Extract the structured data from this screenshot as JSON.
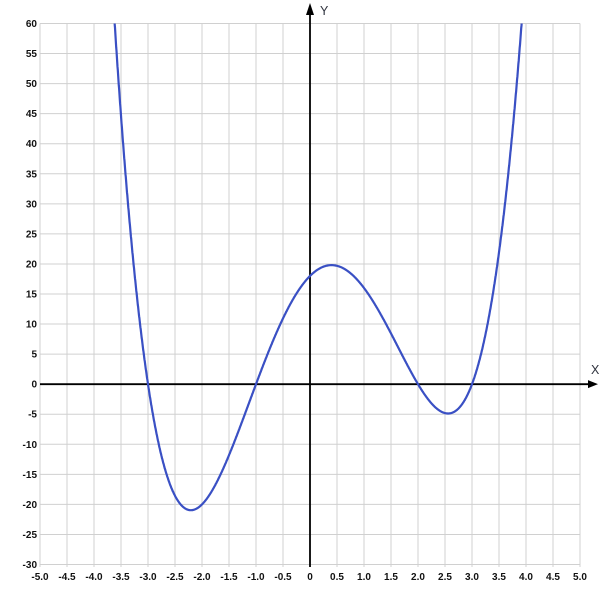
{
  "chart": {
    "x_axis_label": "X",
    "y_axis_label": "Y",
    "x_ticks": [
      {
        "value": -5.0,
        "label": "-5.0"
      },
      {
        "value": -4.5,
        "label": "-4.5"
      },
      {
        "value": -4.0,
        "label": "-4.0"
      },
      {
        "value": -3.5,
        "label": "-3.5"
      },
      {
        "value": -3.0,
        "label": "-3.0"
      },
      {
        "value": -2.5,
        "label": "-2.5"
      },
      {
        "value": -2.0,
        "label": "-2.0"
      },
      {
        "value": -1.5,
        "label": "-1.5"
      },
      {
        "value": -1.0,
        "label": "-1.0"
      },
      {
        "value": -0.5,
        "label": "-0.5"
      },
      {
        "value": 0,
        "label": "0"
      },
      {
        "value": 0.5,
        "label": "0.5"
      },
      {
        "value": 1.0,
        "label": "1.0"
      },
      {
        "value": 1.5,
        "label": "1.5"
      },
      {
        "value": 2.0,
        "label": "2.0"
      },
      {
        "value": 2.5,
        "label": "2.5"
      },
      {
        "value": 3.0,
        "label": "3.0"
      },
      {
        "value": 3.5,
        "label": "3.5"
      },
      {
        "value": 4.0,
        "label": "4.0"
      },
      {
        "value": 4.5,
        "label": "4.5"
      },
      {
        "value": 5.0,
        "label": "5.0"
      }
    ],
    "y_ticks": [
      {
        "value": -30,
        "label": "-30"
      },
      {
        "value": -25,
        "label": "-25"
      },
      {
        "value": -20,
        "label": "-20"
      },
      {
        "value": -15,
        "label": "-15"
      },
      {
        "value": -10,
        "label": "-10"
      },
      {
        "value": -5,
        "label": "-5"
      },
      {
        "value": 0,
        "label": "0"
      },
      {
        "value": 5,
        "label": "5"
      },
      {
        "value": 10,
        "label": "10"
      },
      {
        "value": 15,
        "label": "15"
      },
      {
        "value": 20,
        "label": "20"
      },
      {
        "value": 25,
        "label": "25"
      },
      {
        "value": 30,
        "label": "30"
      },
      {
        "value": 35,
        "label": "35"
      },
      {
        "value": 40,
        "label": "40"
      },
      {
        "value": 45,
        "label": "45"
      },
      {
        "value": 50,
        "label": "50"
      },
      {
        "value": 55,
        "label": "55"
      },
      {
        "value": 60,
        "label": "60"
      }
    ]
  },
  "chart_data": {
    "type": "line",
    "title": "",
    "function": "f(x) = (x+3)(x+1)(x-2)(x-3) = x^4 - x^3 - 11x^2 + 9x + 18",
    "polynomial_coefficients": [
      1,
      -1,
      -11,
      9,
      18
    ],
    "x_range": [
      -5,
      5
    ],
    "y_range": [
      -30,
      60
    ],
    "x_tick_step": 0.5,
    "y_tick_step": 5,
    "grid": true,
    "legend": "none",
    "x_intercepts": [
      -3,
      -1,
      2,
      3
    ],
    "y_intercept": 18,
    "local_maximum": {
      "x": 0.4,
      "y": 19.9
    },
    "local_minima": [
      {
        "x": -2.21,
        "y": -21.0
      },
      {
        "x": 2.54,
        "y": -4.9
      }
    ],
    "sample_points": {
      "x": [
        -3.5,
        -3,
        -2.5,
        -2,
        -1.5,
        -1,
        -0.5,
        0,
        0.5,
        1,
        1.5,
        2,
        2.5,
        3,
        3.5
      ],
      "y": [
        44.69,
        0,
        -18.56,
        -20,
        -11.81,
        0,
        10.94,
        18,
        19.69,
        16,
        8.44,
        0,
        -4.81,
        0,
        21.94
      ]
    },
    "colors": {
      "curve": "#3a50c4",
      "grid": "#d0d0d0",
      "axis": "#000000",
      "tick_label": "#111111",
      "axis_label": "#30343f"
    }
  }
}
